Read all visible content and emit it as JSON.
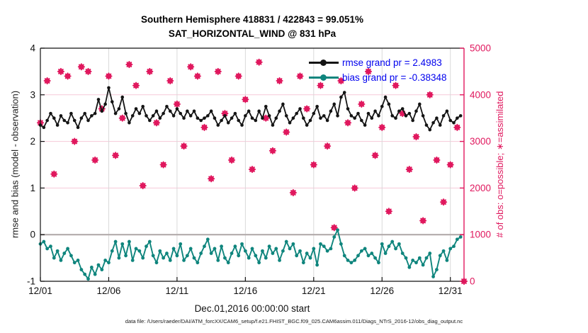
{
  "title": {
    "line1": "Southern Hemisphere 418831 / 422843 = 99.051%",
    "line2": "SAT_HORIZONTAL_WIND @ 831 hPa"
  },
  "legend": {
    "position": "top-right-inside",
    "rmse_label": "rmse grand pr = 2.4983",
    "bias_label": "bias grand pr = -0.38348"
  },
  "footer": {
    "datafile": "data file: /Users/raeder/DAI/ATM_forcXX/CAM6_setup/f.e21.FHIST_BGC.f09_025.CAM6assim.011/Diags_NTrS_2016-12/obs_diag_output.nc"
  },
  "colors": {
    "rmse_line": "#141414",
    "bias_line": "#0f857d",
    "obs_marker": "#e0185e",
    "right_axis": "#e0185e",
    "legend_text": "#0000ee",
    "pink_grid": "#f5c9d8",
    "gray_grid": "#d9d9d9",
    "zero_line": "#b3abab",
    "axis_black": "#111111"
  },
  "chart_data": {
    "type": "line",
    "title": "Southern Hemisphere 418831 / 422843 = 99.051% | SAT_HORIZONTAL_WIND @ 831 hPa",
    "grid": "on",
    "legend_position": "top-right inside axes",
    "x_axis": {
      "label": "Dec.01,2016 00:00:00 start",
      "tick_labels": [
        "12/01",
        "12/06",
        "12/11",
        "12/16",
        "12/21",
        "12/26",
        "12/31"
      ],
      "tick_days": [
        0,
        5,
        10,
        15,
        20,
        25,
        30
      ],
      "range_days": [
        0,
        31
      ]
    },
    "y_left": {
      "label": "rmse and bias (model - observation)",
      "ticks": [
        -1,
        0,
        1,
        2,
        3,
        4
      ],
      "range": [
        -1,
        4
      ],
      "zero_line": 0
    },
    "y_right": {
      "label": "# of obs: o=possible; ∗=assimilated",
      "ticks": [
        0,
        1000,
        2000,
        3000,
        4000,
        5000
      ],
      "range": [
        0,
        5000
      ]
    },
    "series": [
      {
        "name": "rmse",
        "axis": "left",
        "marker": "filled-circle",
        "grand_mean": 2.4983,
        "x_start_day": 0,
        "x_step_days": 0.25,
        "values": [
          2.35,
          2.3,
          2.45,
          2.6,
          2.5,
          2.35,
          2.55,
          2.45,
          2.4,
          2.6,
          2.45,
          2.3,
          2.5,
          2.6,
          2.45,
          2.55,
          2.6,
          2.9,
          2.65,
          2.8,
          3.15,
          2.85,
          2.6,
          2.7,
          2.95,
          2.6,
          2.4,
          2.55,
          2.7,
          2.6,
          2.75,
          2.55,
          2.45,
          2.55,
          2.65,
          2.5,
          2.6,
          2.75,
          2.65,
          2.55,
          2.7,
          2.6,
          2.5,
          2.65,
          2.55,
          2.65,
          2.5,
          2.45,
          2.5,
          2.55,
          2.65,
          2.5,
          2.35,
          2.45,
          2.55,
          2.4,
          2.5,
          2.6,
          2.45,
          2.35,
          2.55,
          2.65,
          2.5,
          2.45,
          2.65,
          2.5,
          2.75,
          2.55,
          2.35,
          2.5,
          2.65,
          2.8,
          2.55,
          2.4,
          2.5,
          2.6,
          2.7,
          2.5,
          2.35,
          2.45,
          2.6,
          2.75,
          2.5,
          2.55,
          2.45,
          2.65,
          2.8,
          2.55,
          2.95,
          3.05,
          2.7,
          2.55,
          2.5,
          2.6,
          2.45,
          2.35,
          2.6,
          2.5,
          2.65,
          2.55,
          2.75,
          2.95,
          2.8,
          2.55,
          2.5,
          2.65,
          2.7,
          2.55,
          2.6,
          2.45,
          2.65,
          2.8,
          2.55,
          2.35,
          2.25,
          2.4,
          2.5,
          2.35,
          2.55,
          2.65,
          2.45,
          2.4,
          2.5,
          2.55
        ]
      },
      {
        "name": "bias",
        "axis": "left",
        "marker": "filled-circle",
        "grand_mean": -0.38348,
        "x_start_day": 0,
        "x_step_days": 0.25,
        "values": [
          -0.2,
          -0.15,
          -0.3,
          -0.25,
          -0.5,
          -0.35,
          -0.55,
          -0.4,
          -0.3,
          -0.45,
          -0.6,
          -0.55,
          -0.75,
          -0.85,
          -0.95,
          -0.7,
          -0.85,
          -0.65,
          -0.75,
          -0.55,
          -0.6,
          -0.35,
          -0.15,
          -0.5,
          -0.2,
          -0.45,
          -0.15,
          -0.55,
          -0.3,
          -0.35,
          -0.5,
          -0.25,
          -0.15,
          -0.45,
          -0.6,
          -0.35,
          -0.5,
          -0.4,
          -0.55,
          -0.3,
          -0.45,
          -0.2,
          -0.55,
          -0.45,
          -0.3,
          -0.5,
          -0.6,
          -0.4,
          -0.25,
          -0.1,
          -0.4,
          -0.3,
          -0.55,
          -0.25,
          -0.5,
          -0.6,
          -0.4,
          -0.25,
          -0.45,
          -0.2,
          -0.35,
          -0.5,
          -0.3,
          -0.45,
          -0.6,
          -0.35,
          -0.5,
          -0.25,
          -0.4,
          -0.3,
          -0.55,
          -0.35,
          -0.15,
          -0.3,
          -0.2,
          -0.45,
          -0.35,
          -0.6,
          -0.4,
          -0.5,
          -0.3,
          -0.65,
          -0.2,
          -0.25,
          -0.35,
          -0.3,
          -0.05,
          0.1,
          -0.2,
          -0.45,
          -0.55,
          -0.6,
          -0.55,
          -0.45,
          -0.35,
          -0.3,
          -0.45,
          -0.4,
          -0.5,
          -0.6,
          -0.2,
          -0.4,
          -0.25,
          -0.15,
          -0.3,
          -0.2,
          -0.4,
          -0.5,
          -0.7,
          -0.55,
          -0.6,
          -0.5,
          -0.65,
          -0.5,
          -0.4,
          -0.9,
          -0.75,
          -0.45,
          -0.35,
          -0.55,
          -0.3,
          -0.25,
          -0.1,
          -0.05
        ]
      },
      {
        "name": "obs_counts",
        "axis": "right",
        "note": "possible (o) and assimilated (*) overlap at 99.051% ratio; drawn as circle+asterisk at same points",
        "sub_series": [
          "possible",
          "assimilated"
        ],
        "x_start_day": 0,
        "x_step_days": 0.5,
        "values": [
          3400,
          4300,
          2300,
          4500,
          4400,
          3000,
          4600,
          4500,
          2600,
          3700,
          4400,
          2700,
          3500,
          4650,
          4200,
          2050,
          4500,
          3400,
          2500,
          4300,
          3800,
          2900,
          4600,
          4400,
          3300,
          2200,
          4500,
          3600,
          2600,
          4400,
          3900,
          2400,
          4700,
          3500,
          2800,
          4300,
          3200,
          1900,
          4400,
          3700,
          2500,
          4200,
          2900,
          1150,
          4300,
          3400,
          2000,
          3800,
          4500,
          2700,
          3300,
          1500,
          4200,
          3600,
          2400,
          3100,
          1300,
          4000,
          2600,
          1700,
          2500,
          3300,
          0
        ]
      }
    ]
  }
}
